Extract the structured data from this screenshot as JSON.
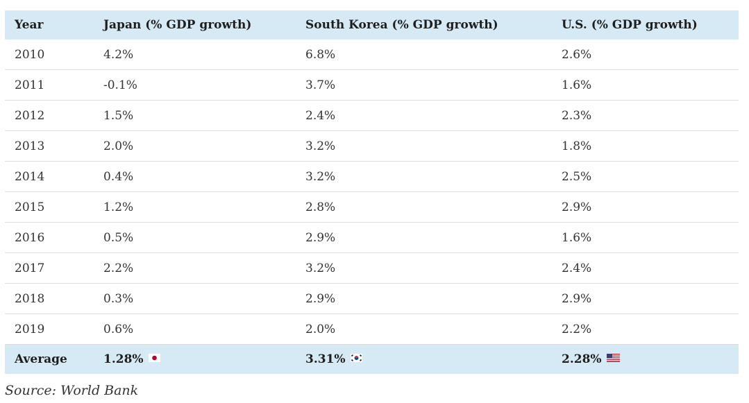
{
  "table": {
    "headers": [
      "Year",
      "Japan (% GDP growth)",
      "South Korea (% GDP growth)",
      "U.S. (% GDP growth)"
    ],
    "rows": [
      [
        "2010",
        "4.2%",
        "6.8%",
        "2.6%"
      ],
      [
        "2011",
        "-0.1%",
        "3.7%",
        "1.6%"
      ],
      [
        "2012",
        "1.5%",
        "2.4%",
        "2.3%"
      ],
      [
        "2013",
        "2.0%",
        "3.2%",
        "1.8%"
      ],
      [
        "2014",
        "0.4%",
        "3.2%",
        "2.5%"
      ],
      [
        "2015",
        "1.2%",
        "2.8%",
        "2.9%"
      ],
      [
        "2016",
        "0.5%",
        "2.9%",
        "1.6%"
      ],
      [
        "2017",
        "2.2%",
        "3.2%",
        "2.4%"
      ],
      [
        "2018",
        "0.3%",
        "2.9%",
        "2.9%"
      ],
      [
        "2019",
        "0.6%",
        "2.0%",
        "2.2%"
      ]
    ],
    "footer": {
      "label": "Average",
      "japan": "1.28%",
      "south_korea": "3.31%",
      "us": "2.28%"
    },
    "flags": {
      "japan": "japan-flag-icon",
      "south_korea": "south-korea-flag-icon",
      "us": "us-flag-icon"
    }
  },
  "colors": {
    "header_background": "#d6eaf5",
    "row_divider": "#dcdcdc",
    "japan_red": "#bc002d",
    "korea_red": "#cd2e3a",
    "korea_blue": "#0047a0",
    "us_red": "#b22234",
    "us_blue": "#3c3b6e"
  },
  "source": "Source: World Bank"
}
